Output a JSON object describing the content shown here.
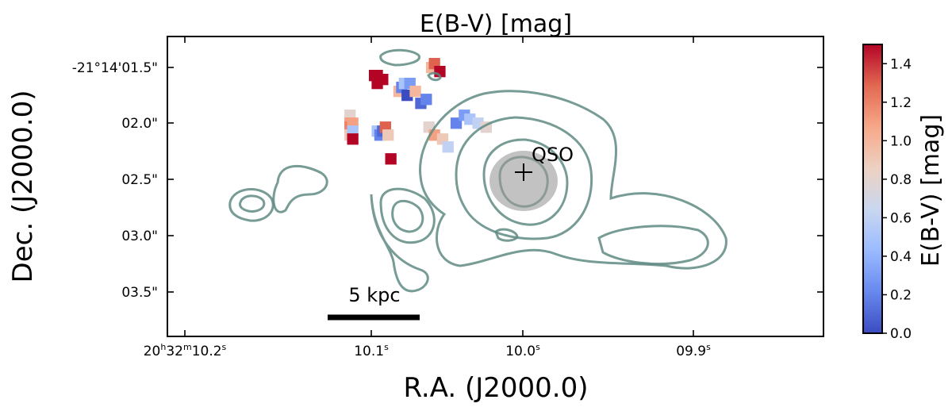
{
  "chart_data": {
    "type": "heatmap",
    "title": "E(B-V) [mag]",
    "xlabel": "R.A. (J2000.0)",
    "ylabel": "Dec. (J2000.0)",
    "x_tick_labels": [
      {
        "main": "20",
        "sup1": "h",
        "mid": "32",
        "sup2": "m",
        "sec": "10.2",
        "sup3": "s"
      },
      {
        "main": "10.1",
        "sup3": "s"
      },
      {
        "main": "10.0",
        "sup3": "s"
      },
      {
        "main": "09.9",
        "sup3": "s"
      }
    ],
    "y_tick_labels": [
      "-21°14'01.5\"",
      "02.0\"",
      "02.5\"",
      "03.0\"",
      "03.5\""
    ],
    "colorbar": {
      "label": "E(B-V) [mag]",
      "range": [
        0.0,
        1.5
      ],
      "ticks": [
        "0.0",
        "0.2",
        "0.4",
        "0.6",
        "0.8",
        "1.0",
        "1.2",
        "1.4"
      ],
      "colormap": "coolwarm",
      "colors": [
        "#3b4cc0",
        "#6788ee",
        "#9abbff",
        "#c9d7f0",
        "#edd1c2",
        "#f7a889",
        "#e26952",
        "#b40426"
      ]
    },
    "annotations": {
      "source_label": "QSO",
      "scalebar_label": "5 kpc"
    },
    "cells": [
      {
        "x": 10.2,
        "y": 1.4,
        "v": 0.8
      },
      {
        "x": 10.2,
        "y": 1.6,
        "v": 1.1
      },
      {
        "x": 10.2,
        "y": 1.7,
        "v": 1.2
      },
      {
        "x": 10.2,
        "y": 1.9,
        "v": 0.9
      },
      {
        "x": 10.3,
        "y": 1.6,
        "v": 1.1
      },
      {
        "x": 10.3,
        "y": 1.8,
        "v": 0.5
      },
      {
        "x": 10.3,
        "y": 2.0,
        "v": 1.5
      },
      {
        "x": 11.1,
        "y": 0.4,
        "v": 1.5
      },
      {
        "x": 11.2,
        "y": 0.4,
        "v": 1.5
      },
      {
        "x": 11.2,
        "y": 0.6,
        "v": 1.5
      },
      {
        "x": 11.4,
        "y": 0.5,
        "v": 1.5
      },
      {
        "x": 11.2,
        "y": 1.8,
        "v": 0.5
      },
      {
        "x": 11.3,
        "y": 1.9,
        "v": 0.2
      },
      {
        "x": 11.4,
        "y": 1.8,
        "v": 0.1
      },
      {
        "x": 11.5,
        "y": 1.7,
        "v": 1.3
      },
      {
        "x": 11.6,
        "y": 1.9,
        "v": 0.9
      },
      {
        "x": 11.7,
        "y": 2.5,
        "v": 1.5
      },
      {
        "x": 12.0,
        "y": 0.8,
        "v": 1.0
      },
      {
        "x": 12.1,
        "y": 0.7,
        "v": 0.2
      },
      {
        "x": 12.2,
        "y": 0.6,
        "v": 0.5
      },
      {
        "x": 12.3,
        "y": 0.9,
        "v": 0.0
      },
      {
        "x": 12.4,
        "y": 0.6,
        "v": 0.3
      },
      {
        "x": 12.6,
        "y": 0.8,
        "v": 1.0
      },
      {
        "x": 12.8,
        "y": 1.1,
        "v": 0.1
      },
      {
        "x": 13.0,
        "y": 1.0,
        "v": 0.2
      },
      {
        "x": 13.2,
        "y": 0.2,
        "v": 1.0
      },
      {
        "x": 13.3,
        "y": 0.1,
        "v": 1.3
      },
      {
        "x": 13.5,
        "y": 0.3,
        "v": 1.5
      },
      {
        "x": 13.1,
        "y": 1.7,
        "v": 0.8
      },
      {
        "x": 13.3,
        "y": 1.9,
        "v": 1.1
      },
      {
        "x": 13.6,
        "y": 2.0,
        "v": 0.9
      },
      {
        "x": 13.8,
        "y": 2.2,
        "v": 0.6
      },
      {
        "x": 14.1,
        "y": 1.6,
        "v": 0.2
      },
      {
        "x": 14.4,
        "y": 1.4,
        "v": 0.3
      },
      {
        "x": 14.6,
        "y": 1.5,
        "v": 0.5
      },
      {
        "x": 14.9,
        "y": 1.6,
        "v": 0.6
      },
      {
        "x": 15.2,
        "y": 1.7,
        "v": 0.8
      }
    ]
  }
}
